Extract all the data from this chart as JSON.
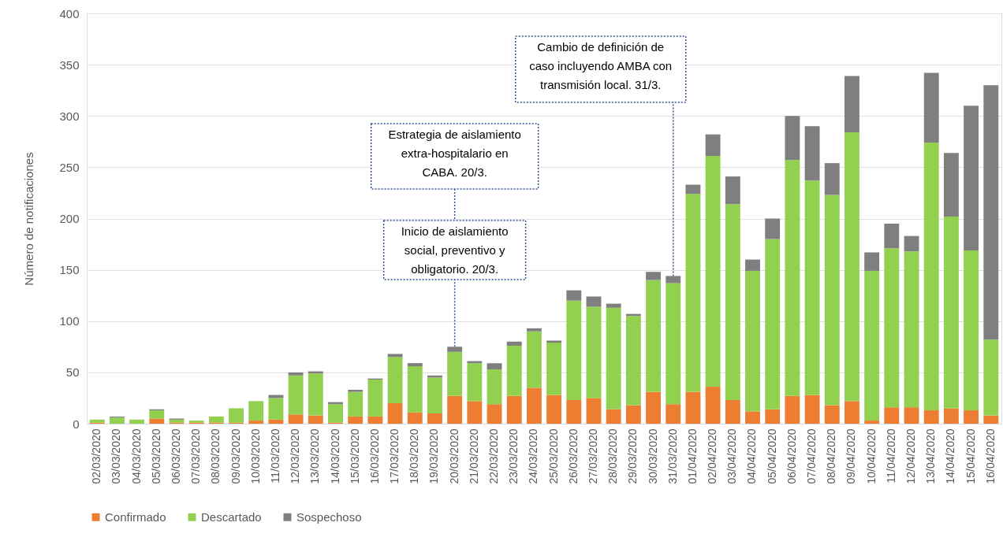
{
  "chart_data": {
    "type": "bar",
    "stacked": true,
    "ylabel": "Número de notificaciones",
    "categories": [
      "02/03/2020",
      "03/03/2020",
      "04/03/2020",
      "05/03/2020",
      "06/03/2020",
      "07/03/2020",
      "08/03/2020",
      "09/03/2020",
      "10/03/2020",
      "11/03/2020",
      "12/03/2020",
      "13/03/2020",
      "14/03/2020",
      "15/03/2020",
      "16/03/2020",
      "17/03/2020",
      "18/03/2020",
      "19/03/2020",
      "20/03/2020",
      "21/03/2020",
      "22/03/2020",
      "23/03/2020",
      "24/03/2020",
      "25/03/2020",
      "26/03/2020",
      "27/03/2020",
      "28/03/2020",
      "29/03/2020",
      "30/03/2020",
      "31/03/2020",
      "01/04/2020",
      "02/04/2020",
      "03/04/2020",
      "04/04/2020",
      "05/04/2020",
      "06/04/2020",
      "07/04/2020",
      "08/04/2020",
      "09/04/2020",
      "10/04/2020",
      "11/04/2020",
      "12/04/2020",
      "13/04/2020",
      "14/04/2020",
      "15/04/2020",
      "16/04/2020"
    ],
    "series": [
      {
        "name": "Confirmado",
        "color": "#ed7d31",
        "values": [
          1,
          0,
          0,
          5,
          1,
          1,
          1,
          1,
          3,
          4,
          9,
          8,
          1,
          7,
          7,
          20,
          11,
          10,
          27,
          22,
          19,
          27,
          35,
          28,
          23,
          25,
          14,
          18,
          31,
          19,
          31,
          36,
          23,
          12,
          14,
          27,
          28,
          18,
          22,
          3,
          16,
          16,
          13,
          15,
          13,
          8
        ]
      },
      {
        "name": "Descartado",
        "color": "#92d050",
        "values": [
          3,
          6,
          4,
          8,
          3,
          2,
          6,
          14,
          19,
          21,
          38,
          41,
          18,
          24,
          36,
          45,
          45,
          35,
          43,
          37,
          34,
          49,
          55,
          51,
          97,
          89,
          99,
          87,
          109,
          118,
          193,
          225,
          191,
          137,
          166,
          230,
          209,
          205,
          262,
          146,
          155,
          152,
          261,
          187,
          156,
          74
        ]
      },
      {
        "name": "Sospechoso",
        "color": "#7f7f7f",
        "values": [
          0,
          1,
          0,
          1,
          1,
          0,
          0,
          0,
          0,
          3,
          3,
          2,
          2,
          2,
          1,
          3,
          3,
          2,
          5,
          2,
          6,
          4,
          3,
          2,
          10,
          10,
          4,
          2,
          8,
          7,
          9,
          21,
          27,
          11,
          20,
          43,
          53,
          31,
          55,
          18,
          24,
          15,
          68,
          62,
          141,
          248
        ]
      }
    ],
    "ylim": [
      0,
      400
    ],
    "yticks": [
      0,
      50,
      100,
      150,
      200,
      250,
      300,
      350,
      400
    ],
    "grid": "y",
    "legend": "bottom",
    "annotations": [
      {
        "text": "Inicio de aislamiento\nsocial, preventivo y\nobligatorio. 20/3.",
        "x": "20/03/2020",
        "y": 75
      },
      "Estrategia de aislamiento\nextra-hospitalario en\nCABA. 20/3.",
      {
        "text": "Cambio de definición de\ncaso incluyendo AMBA con\ntransmisión local. 31/3.",
        "x": "31/03/2020",
        "y": 144
      }
    ]
  }
}
